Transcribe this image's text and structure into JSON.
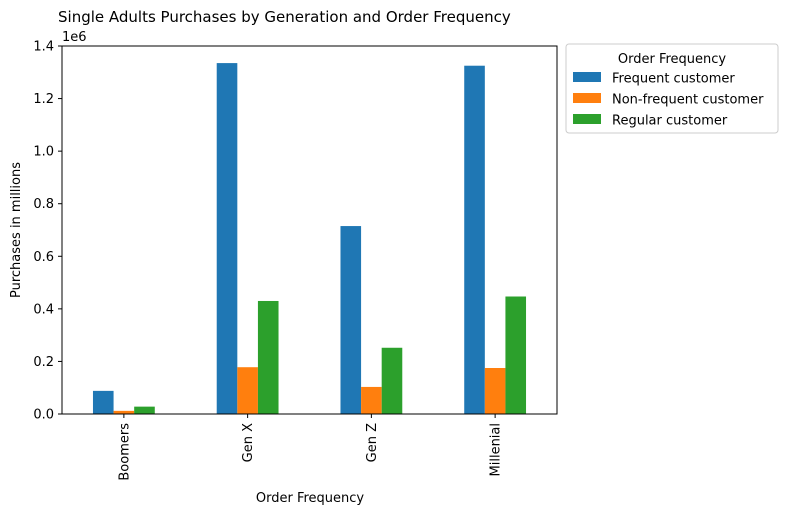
{
  "chart_data": {
    "type": "bar",
    "title": "Single Adults Purchases by Generation and Order Frequency",
    "xlabel": "Order Frequency",
    "ylabel": "Purchases in millions",
    "y_offset_text": "1e6",
    "categories": [
      "Boomers",
      "Gen X",
      "Gen Z",
      "Millenial"
    ],
    "series": [
      {
        "name": "Frequent customer",
        "color": "#1f77b4",
        "values": [
          88000,
          1335000,
          715000,
          1325000
        ]
      },
      {
        "name": "Non-frequent customer",
        "color": "#ff7f0e",
        "values": [
          12000,
          178000,
          103000,
          175000
        ]
      },
      {
        "name": "Regular customer",
        "color": "#2ca02c",
        "values": [
          28000,
          430000,
          252000,
          447000
        ]
      }
    ],
    "ylim": [
      0,
      1400000
    ],
    "yticks": [
      0,
      200000,
      400000,
      600000,
      800000,
      1000000,
      1200000,
      1400000
    ],
    "ytick_labels": [
      "0.0",
      "0.2",
      "0.4",
      "0.6",
      "0.8",
      "1.0",
      "1.2",
      "1.4"
    ],
    "legend": {
      "title": "Order Frequency",
      "placement": "outside-upper-right"
    },
    "grid": false
  }
}
